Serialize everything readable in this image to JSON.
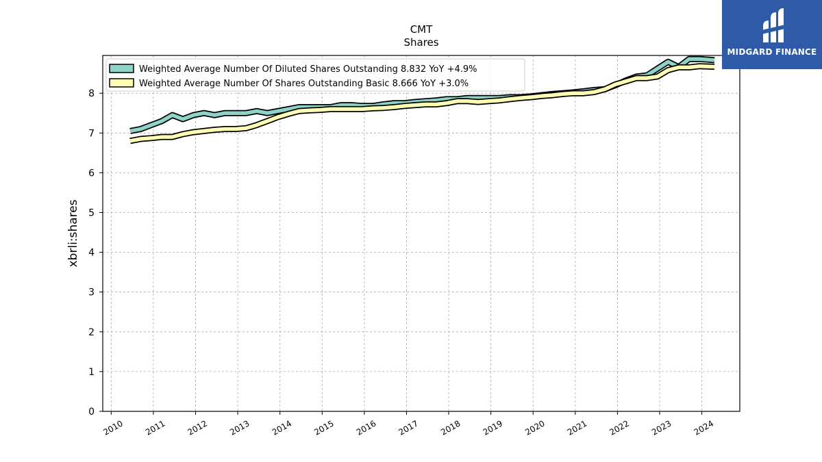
{
  "logo": {
    "text": "MIDGARD FINANCE"
  },
  "chart_data": {
    "type": "area",
    "title": "CMT",
    "subtitle": "Shares",
    "xlabel": "",
    "ylabel": "xbrli:shares",
    "ylim": [
      0,
      8.95
    ],
    "xlim": [
      2009.8,
      2024.9
    ],
    "x_ticks": [
      "2010",
      "2011",
      "2012",
      "2013",
      "2014",
      "2015",
      "2016",
      "2017",
      "2018",
      "2019",
      "2020",
      "2021",
      "2022",
      "2023",
      "2024"
    ],
    "y_ticks": [
      "0",
      "1",
      "2",
      "3",
      "4",
      "5",
      "6",
      "7",
      "8"
    ],
    "grid": true,
    "legend_position": "top-left",
    "series": [
      {
        "name": "Weighted Average Number Of Diluted Shares Outstanding  8.832 YoY +4.9%",
        "color": "#8dd3c7",
        "x": [
          2010.45,
          2010.7,
          2010.95,
          2011.2,
          2011.45,
          2011.7,
          2011.95,
          2012.2,
          2012.45,
          2012.7,
          2012.95,
          2013.2,
          2013.45,
          2013.7,
          2013.95,
          2014.2,
          2014.45,
          2014.7,
          2014.95,
          2015.2,
          2015.45,
          2015.7,
          2015.95,
          2016.2,
          2016.45,
          2016.7,
          2016.95,
          2017.2,
          2017.45,
          2017.7,
          2017.95,
          2018.2,
          2018.45,
          2018.7,
          2018.95,
          2019.2,
          2019.45,
          2019.7,
          2019.95,
          2020.2,
          2020.45,
          2020.7,
          2020.95,
          2021.2,
          2021.45,
          2021.7,
          2021.95,
          2022.2,
          2022.45,
          2022.7,
          2022.95,
          2023.2,
          2023.45,
          2023.7,
          2023.95,
          2024.3
        ],
        "values": [
          7.05,
          7.1,
          7.2,
          7.3,
          7.45,
          7.35,
          7.45,
          7.5,
          7.45,
          7.5,
          7.5,
          7.5,
          7.55,
          7.5,
          7.55,
          7.6,
          7.65,
          7.65,
          7.65,
          7.65,
          7.7,
          7.7,
          7.68,
          7.68,
          7.72,
          7.75,
          7.75,
          7.78,
          7.8,
          7.82,
          7.85,
          7.85,
          7.88,
          7.88,
          7.88,
          7.88,
          7.9,
          7.9,
          7.92,
          7.95,
          7.98,
          8.0,
          8.02,
          8.05,
          8.08,
          8.1,
          8.2,
          8.32,
          8.42,
          8.45,
          8.62,
          8.79,
          8.66,
          8.86,
          8.86,
          8.832
        ]
      },
      {
        "name": "Weighted Average Number Of Shares Outstanding Basic  8.666 YoY +3.0%",
        "color": "#ffffb3",
        "x": [
          2010.45,
          2010.7,
          2010.95,
          2011.2,
          2011.45,
          2011.7,
          2011.95,
          2012.2,
          2012.45,
          2012.7,
          2012.95,
          2013.2,
          2013.45,
          2013.7,
          2013.95,
          2014.2,
          2014.45,
          2014.7,
          2014.95,
          2015.2,
          2015.45,
          2015.7,
          2015.95,
          2016.2,
          2016.45,
          2016.7,
          2016.95,
          2017.2,
          2017.45,
          2017.7,
          2017.95,
          2018.2,
          2018.45,
          2018.7,
          2018.95,
          2019.2,
          2019.45,
          2019.7,
          2019.95,
          2020.2,
          2020.45,
          2020.7,
          2020.95,
          2021.2,
          2021.45,
          2021.7,
          2021.95,
          2022.2,
          2022.45,
          2022.7,
          2022.95,
          2023.2,
          2023.45,
          2023.7,
          2023.95,
          2024.3
        ],
        "values": [
          6.8,
          6.85,
          6.87,
          6.9,
          6.9,
          6.97,
          7.02,
          7.05,
          7.08,
          7.1,
          7.1,
          7.12,
          7.2,
          7.3,
          7.4,
          7.48,
          7.55,
          7.57,
          7.58,
          7.6,
          7.6,
          7.6,
          7.6,
          7.62,
          7.63,
          7.65,
          7.68,
          7.7,
          7.72,
          7.72,
          7.75,
          7.8,
          7.8,
          7.78,
          7.8,
          7.82,
          7.85,
          7.88,
          7.9,
          7.93,
          7.95,
          7.98,
          8.0,
          8.0,
          8.03,
          8.1,
          8.22,
          8.3,
          8.38,
          8.38,
          8.42,
          8.58,
          8.65,
          8.65,
          8.68,
          8.666
        ]
      }
    ]
  }
}
